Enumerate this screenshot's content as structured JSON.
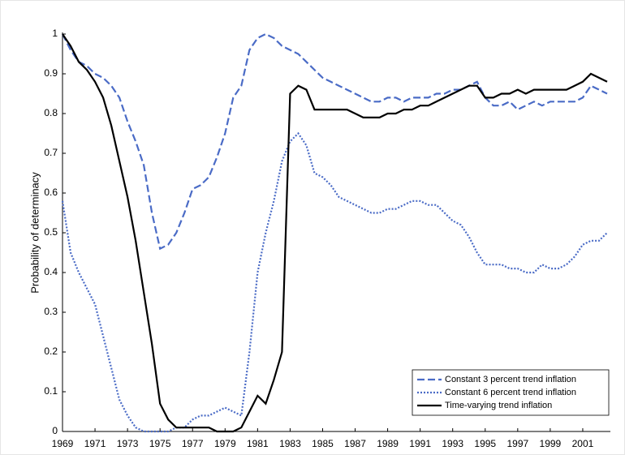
{
  "chart_data": {
    "type": "line",
    "y_label": "Probability of determinacy",
    "x": [
      1969,
      1969.5,
      1970,
      1970.5,
      1971,
      1971.5,
      1972,
      1972.5,
      1973,
      1973.5,
      1974,
      1974.5,
      1975,
      1975.5,
      1976,
      1976.5,
      1977,
      1977.5,
      1978,
      1978.5,
      1979,
      1979.5,
      1980,
      1980.5,
      1981,
      1981.5,
      1982,
      1982.5,
      1983,
      1983.5,
      1984,
      1984.5,
      1985,
      1985.5,
      1986,
      1986.5,
      1987,
      1987.5,
      1988,
      1988.5,
      1989,
      1989.5,
      1990,
      1990.5,
      1991,
      1991.5,
      1992,
      1992.5,
      1993,
      1993.5,
      1994,
      1994.5,
      1995,
      1995.5,
      1996,
      1996.5,
      1997,
      1997.5,
      1998,
      1998.5,
      1999,
      1999.5,
      2000,
      2000.5,
      2001,
      2001.5,
      2002,
      2002.5
    ],
    "series": [
      {
        "name": "Constant 3 percent trend inflation",
        "color": "#4a6bc6",
        "style": "dashed",
        "values": [
          1.0,
          0.96,
          0.93,
          0.92,
          0.9,
          0.89,
          0.87,
          0.84,
          0.78,
          0.73,
          0.67,
          0.55,
          0.46,
          0.47,
          0.5,
          0.55,
          0.61,
          0.62,
          0.64,
          0.69,
          0.75,
          0.84,
          0.87,
          0.96,
          0.99,
          1.0,
          0.99,
          0.97,
          0.96,
          0.95,
          0.93,
          0.91,
          0.89,
          0.88,
          0.87,
          0.86,
          0.85,
          0.84,
          0.83,
          0.83,
          0.84,
          0.84,
          0.83,
          0.84,
          0.84,
          0.84,
          0.85,
          0.85,
          0.86,
          0.86,
          0.87,
          0.88,
          0.84,
          0.82,
          0.82,
          0.83,
          0.81,
          0.82,
          0.83,
          0.82,
          0.83,
          0.83,
          0.83,
          0.83,
          0.84,
          0.87,
          0.86,
          0.85
        ]
      },
      {
        "name": "Constant 6 percent trend inflation",
        "color": "#4a6bc6",
        "style": "dotted",
        "values": [
          0.58,
          0.45,
          0.4,
          0.36,
          0.32,
          0.24,
          0.16,
          0.08,
          0.04,
          0.01,
          0.0,
          0.0,
          0.0,
          0.0,
          0.01,
          0.01,
          0.03,
          0.04,
          0.04,
          0.05,
          0.06,
          0.05,
          0.04,
          0.2,
          0.4,
          0.5,
          0.58,
          0.68,
          0.73,
          0.75,
          0.72,
          0.65,
          0.64,
          0.62,
          0.59,
          0.58,
          0.57,
          0.56,
          0.55,
          0.55,
          0.56,
          0.56,
          0.57,
          0.58,
          0.58,
          0.57,
          0.57,
          0.55,
          0.53,
          0.52,
          0.49,
          0.45,
          0.42,
          0.42,
          0.42,
          0.41,
          0.41,
          0.4,
          0.4,
          0.42,
          0.41,
          0.41,
          0.42,
          0.44,
          0.47,
          0.48,
          0.48,
          0.5
        ]
      },
      {
        "name": "Time-varying trend inflation",
        "color": "#000000",
        "style": "solid",
        "values": [
          1.0,
          0.97,
          0.93,
          0.91,
          0.88,
          0.84,
          0.77,
          0.68,
          0.59,
          0.48,
          0.35,
          0.22,
          0.07,
          0.03,
          0.01,
          0.01,
          0.01,
          0.01,
          0.01,
          0.0,
          0.0,
          0.0,
          0.01,
          0.05,
          0.09,
          0.07,
          0.13,
          0.2,
          0.85,
          0.87,
          0.86,
          0.81,
          0.81,
          0.81,
          0.81,
          0.81,
          0.8,
          0.79,
          0.79,
          0.79,
          0.8,
          0.8,
          0.81,
          0.81,
          0.82,
          0.82,
          0.83,
          0.84,
          0.85,
          0.86,
          0.87,
          0.87,
          0.84,
          0.84,
          0.85,
          0.85,
          0.86,
          0.85,
          0.86,
          0.86,
          0.86,
          0.86,
          0.86,
          0.87,
          0.88,
          0.9,
          0.89,
          0.88
        ]
      }
    ],
    "xlim": [
      1969,
      2002.7
    ],
    "xticks": [
      1969,
      1971,
      1973,
      1975,
      1977,
      1979,
      1981,
      1983,
      1985,
      1987,
      1989,
      1991,
      1993,
      1995,
      1997,
      1999,
      2001
    ],
    "ylim": [
      0,
      1
    ],
    "yticks": [
      0,
      0.1,
      0.2,
      0.3,
      0.4,
      0.5,
      0.6,
      0.7,
      0.8,
      0.9,
      1
    ],
    "grid": false,
    "legend": "lower-right"
  }
}
